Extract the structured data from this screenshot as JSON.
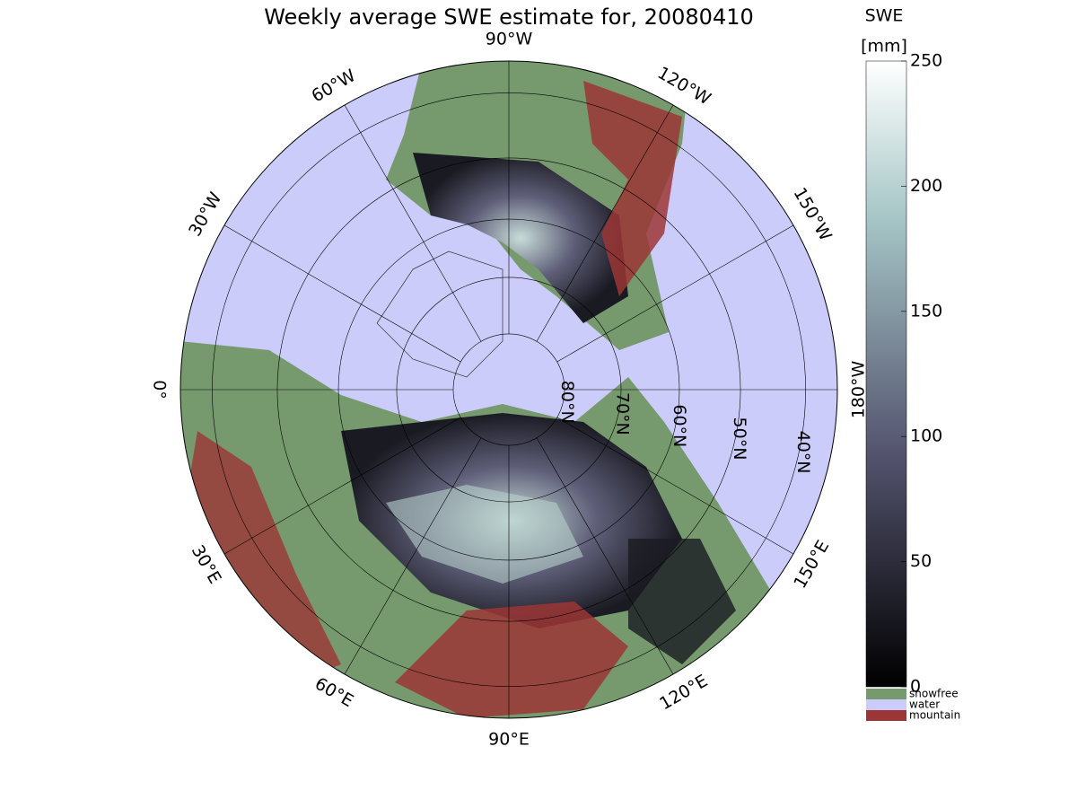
{
  "title": "Weekly average SWE estimate for, 20080410",
  "longitudes": [
    {
      "value": 0,
      "label": "0°"
    },
    {
      "value": -30,
      "label": "30°W"
    },
    {
      "value": -60,
      "label": "60°W"
    },
    {
      "value": -90,
      "label": "90°W"
    },
    {
      "value": -120,
      "label": "120°W"
    },
    {
      "value": -150,
      "label": "150°W"
    },
    {
      "value": 180,
      "label": "180°W"
    },
    {
      "value": 150,
      "label": "150°E"
    },
    {
      "value": 120,
      "label": "120°E"
    },
    {
      "value": 90,
      "label": "90°E"
    },
    {
      "value": 60,
      "label": "60°E"
    },
    {
      "value": 30,
      "label": "30°E"
    }
  ],
  "latitudes": [
    {
      "value": 80,
      "label": "80°N"
    },
    {
      "value": 70,
      "label": "70°N"
    },
    {
      "value": 60,
      "label": "60°N"
    },
    {
      "value": 50,
      "label": "50°N"
    },
    {
      "value": 40,
      "label": "40°N"
    }
  ],
  "colorbar": {
    "title": "SWE",
    "unit": "[mm]",
    "lim": [
      0,
      250
    ],
    "ticks": [
      0,
      50,
      100,
      150,
      200,
      250
    ]
  },
  "legend": [
    {
      "name": "snowfree",
      "color": "#769a6e"
    },
    {
      "name": "water",
      "color": "#ccccfa"
    },
    {
      "name": "mountain",
      "color": "#9c3636"
    }
  ]
}
